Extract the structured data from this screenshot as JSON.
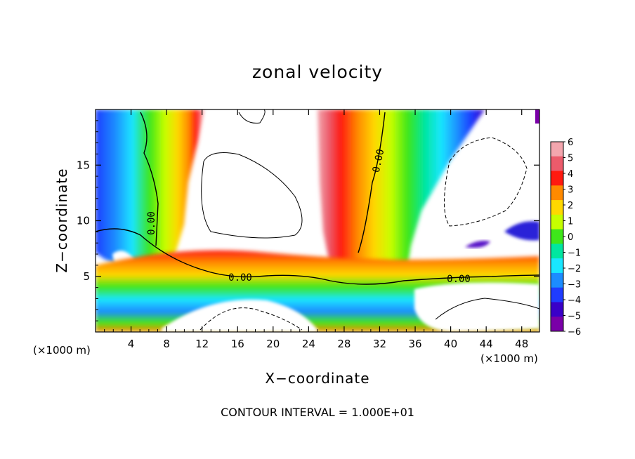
{
  "chart_data": {
    "type": "heatmap",
    "title": "zonal velocity",
    "xlabel": "X−coordinate",
    "ylabel": "Z−coordinate",
    "x_scale_note": "(×1000 m)",
    "y_scale_note": "(×1000 m)",
    "xlim": [
      0,
      50
    ],
    "ylim": [
      0,
      20
    ],
    "x_ticks": [
      4,
      8,
      12,
      16,
      20,
      24,
      28,
      32,
      36,
      40,
      44,
      48
    ],
    "y_ticks": [
      5,
      10,
      15
    ],
    "colorbar": {
      "levels": [
        6,
        5,
        4,
        3,
        2,
        1,
        0,
        -1,
        -2,
        -3,
        -4,
        -5,
        -6
      ],
      "labels": [
        "6",
        "5",
        "4",
        "3",
        "2",
        "1",
        "0",
        "−1",
        "−2",
        "−3",
        "−4",
        "−5",
        "−6"
      ],
      "colors": [
        "#f4a6ae",
        "#ec5b6b",
        "#ff1a10",
        "#ff8a00",
        "#ffd800",
        "#c6ff00",
        "#3ee61a",
        "#00e6a0",
        "#19e6ff",
        "#1c8cff",
        "#1f3cff",
        "#3a00c8",
        "#7a00a8"
      ]
    },
    "contour_labels": [
      "0.00",
      "0.00",
      "0.00",
      "0.00"
    ],
    "contour_interval": "CONTOUR INTERVAL = 1.000E+01",
    "field_notes": {
      "strong_positive_column_x": [
        25,
        30
      ],
      "negative_column_x": [
        33,
        40
      ],
      "shear_layer_z": [
        4,
        6
      ],
      "saturated_white_regions": "values above 6 shown white"
    }
  }
}
